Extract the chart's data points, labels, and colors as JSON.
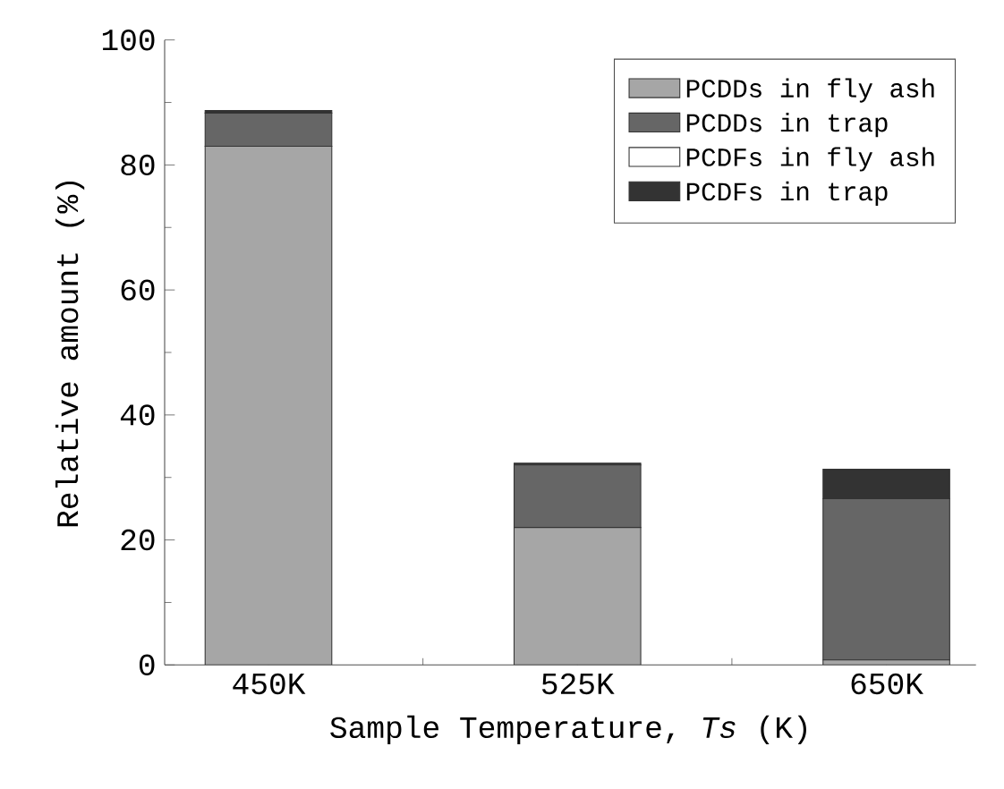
{
  "chart_data": {
    "type": "bar",
    "stacked": true,
    "xlabel": "Sample Temperature, *Ts* (K)",
    "ylabel": "Relative amount (%)",
    "categories": [
      "450K",
      "525K",
      "650K"
    ],
    "series": [
      {
        "name": "PCDDs in fly ash",
        "color": "#a6a6a6",
        "values": [
          83,
          22,
          0.8
        ]
      },
      {
        "name": "PCDDs in trap",
        "color": "#666666",
        "values": [
          5.3,
          10,
          25.8
        ]
      },
      {
        "name": "PCDFs in fly ash",
        "color": "#ffffff",
        "values": [
          0,
          0,
          0
        ]
      },
      {
        "name": "PCDFs in trap",
        "color": "#333333",
        "values": [
          0.4,
          0.3,
          4.7
        ]
      }
    ],
    "ylim": [
      0,
      100
    ],
    "yticks": [
      0,
      20,
      40,
      60,
      80,
      100
    ],
    "legend": "top right",
    "grid": false
  }
}
